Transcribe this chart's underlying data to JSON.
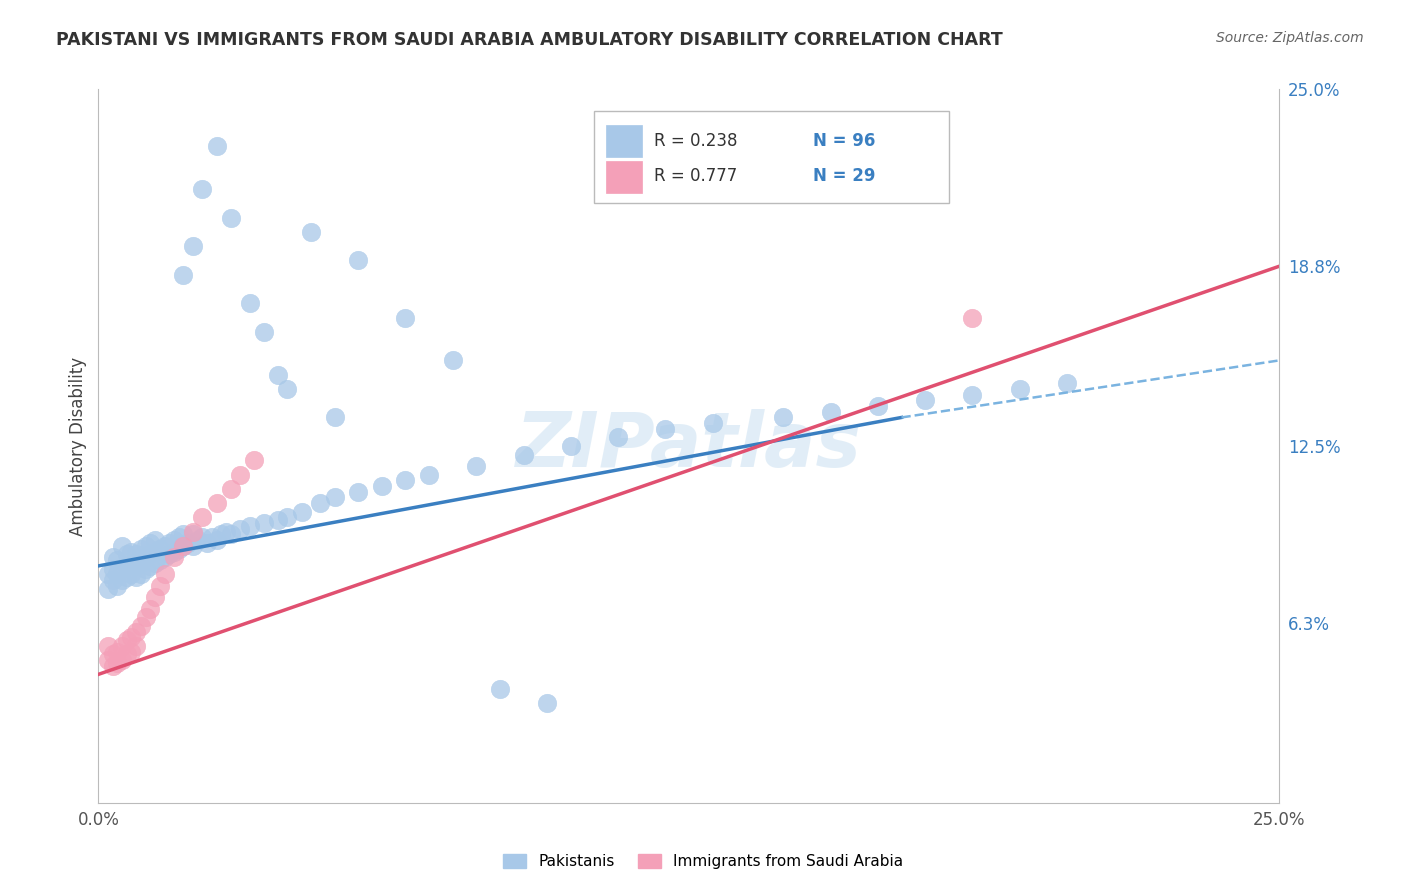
{
  "title": "PAKISTANI VS IMMIGRANTS FROM SAUDI ARABIA AMBULATORY DISABILITY CORRELATION CHART",
  "source": "Source: ZipAtlas.com",
  "ylabel": "Ambulatory Disability",
  "xlim": [
    0.0,
    0.25
  ],
  "ylim": [
    0.0,
    0.25
  ],
  "watermark": "ZIPatlas",
  "legend_r1": "R = 0.238",
  "legend_n1": "N = 96",
  "legend_r2": "R = 0.777",
  "legend_n2": "N = 29",
  "blue_scatter_color": "#a8c8e8",
  "pink_scatter_color": "#f4a0b8",
  "blue_line_color": "#3a7fc1",
  "pink_line_color": "#e05070",
  "blue_dash_color": "#7ab3e0",
  "grid_color": "#cccccc",
  "background_color": "#ffffff",
  "title_color": "#333333",
  "source_color": "#666666",
  "ylabel_color": "#444444",
  "tick_label_color": "#555555",
  "right_tick_color": "#3a7fc1",
  "ytick_right_positions": [
    0.063,
    0.125,
    0.188,
    0.25
  ],
  "ytick_right_labels": [
    "6.3%",
    "12.5%",
    "18.8%",
    "25.0%"
  ],
  "xtick_positions": [
    0.0,
    0.25
  ],
  "xtick_label_values": [
    "0.0%",
    "25.0%"
  ],
  "blue_trendline": [
    [
      0.0,
      0.083
    ],
    [
      0.17,
      0.135
    ]
  ],
  "blue_dash_trendline": [
    [
      0.17,
      0.135
    ],
    [
      0.25,
      0.155
    ]
  ],
  "pink_trendline": [
    [
      0.0,
      0.045
    ],
    [
      0.25,
      0.188
    ]
  ],
  "blue_pts_x": [
    0.002,
    0.002,
    0.003,
    0.003,
    0.003,
    0.004,
    0.004,
    0.004,
    0.005,
    0.005,
    0.005,
    0.006,
    0.006,
    0.006,
    0.007,
    0.007,
    0.007,
    0.008,
    0.008,
    0.008,
    0.009,
    0.009,
    0.009,
    0.01,
    0.01,
    0.01,
    0.011,
    0.011,
    0.011,
    0.012,
    0.012,
    0.012,
    0.013,
    0.013,
    0.014,
    0.014,
    0.015,
    0.015,
    0.016,
    0.016,
    0.017,
    0.017,
    0.018,
    0.018,
    0.019,
    0.02,
    0.02,
    0.021,
    0.022,
    0.023,
    0.024,
    0.025,
    0.026,
    0.027,
    0.028,
    0.03,
    0.032,
    0.035,
    0.038,
    0.04,
    0.043,
    0.047,
    0.05,
    0.055,
    0.06,
    0.065,
    0.07,
    0.08,
    0.09,
    0.1,
    0.11,
    0.12,
    0.13,
    0.145,
    0.155,
    0.165,
    0.175,
    0.185,
    0.195,
    0.205,
    0.018,
    0.02,
    0.022,
    0.025,
    0.028,
    0.032,
    0.035,
    0.038,
    0.04,
    0.045,
    0.05,
    0.055,
    0.065,
    0.075,
    0.085,
    0.095
  ],
  "blue_pts_y": [
    0.075,
    0.08,
    0.078,
    0.082,
    0.086,
    0.076,
    0.08,
    0.085,
    0.078,
    0.082,
    0.09,
    0.079,
    0.083,
    0.087,
    0.08,
    0.084,
    0.088,
    0.079,
    0.083,
    0.087,
    0.08,
    0.084,
    0.089,
    0.082,
    0.086,
    0.09,
    0.083,
    0.087,
    0.091,
    0.084,
    0.088,
    0.092,
    0.085,
    0.089,
    0.086,
    0.09,
    0.087,
    0.091,
    0.088,
    0.092,
    0.089,
    0.093,
    0.09,
    0.094,
    0.091,
    0.09,
    0.094,
    0.092,
    0.093,
    0.091,
    0.093,
    0.092,
    0.094,
    0.095,
    0.094,
    0.096,
    0.097,
    0.098,
    0.099,
    0.1,
    0.102,
    0.105,
    0.107,
    0.109,
    0.111,
    0.113,
    0.115,
    0.118,
    0.122,
    0.125,
    0.128,
    0.131,
    0.133,
    0.135,
    0.137,
    0.139,
    0.141,
    0.143,
    0.145,
    0.147,
    0.185,
    0.195,
    0.215,
    0.23,
    0.205,
    0.175,
    0.165,
    0.15,
    0.145,
    0.2,
    0.135,
    0.19,
    0.17,
    0.155,
    0.04,
    0.035
  ],
  "pink_pts_x": [
    0.002,
    0.002,
    0.003,
    0.003,
    0.004,
    0.004,
    0.005,
    0.005,
    0.006,
    0.006,
    0.007,
    0.007,
    0.008,
    0.008,
    0.009,
    0.01,
    0.011,
    0.012,
    0.013,
    0.014,
    0.016,
    0.018,
    0.02,
    0.022,
    0.025,
    0.028,
    0.03,
    0.033,
    0.185
  ],
  "pink_pts_y": [
    0.05,
    0.055,
    0.048,
    0.052,
    0.049,
    0.053,
    0.05,
    0.055,
    0.052,
    0.057,
    0.053,
    0.058,
    0.055,
    0.06,
    0.062,
    0.065,
    0.068,
    0.072,
    0.076,
    0.08,
    0.086,
    0.09,
    0.095,
    0.1,
    0.105,
    0.11,
    0.115,
    0.12,
    0.17
  ]
}
